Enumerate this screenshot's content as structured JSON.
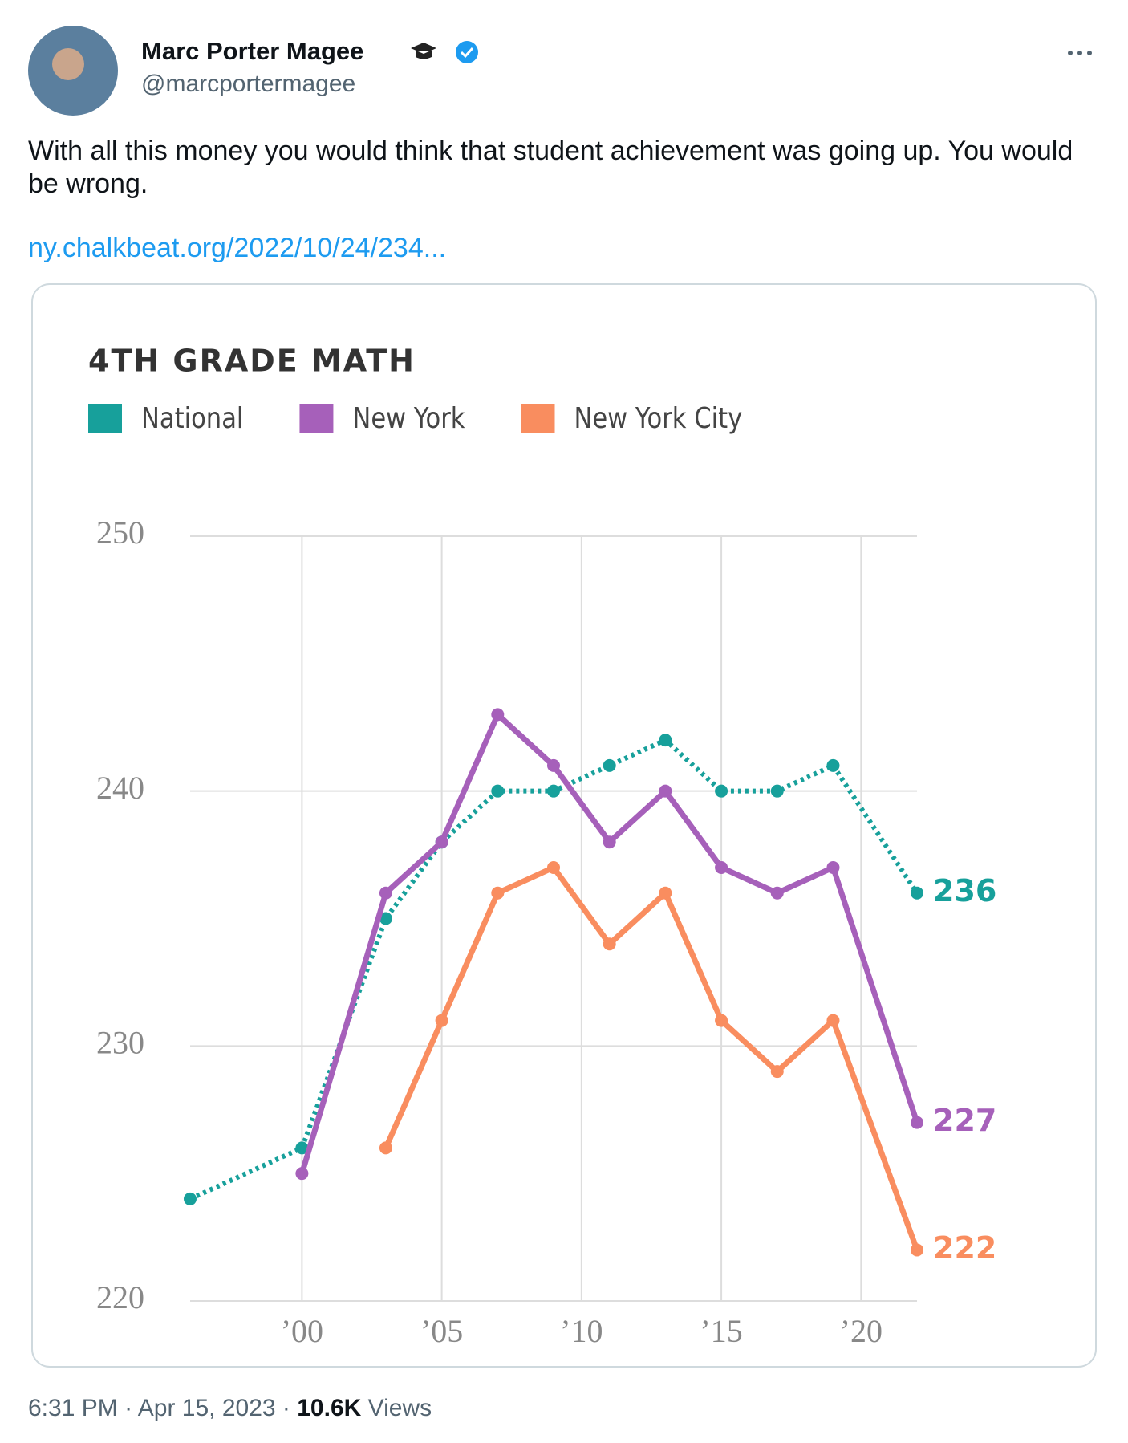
{
  "tweet": {
    "author_name": "Marc Porter Magee",
    "handle": "@marcportermagee",
    "text": "With all this money you would think that student achievement was going up. You would be wrong.",
    "link": "ny.chalkbeat.org/2022/10/24/234...",
    "time": "6:31 PM",
    "separator": "·",
    "date": "Apr 15, 2023",
    "views": "10.6K",
    "views_label": "Views"
  },
  "chart_data": {
    "type": "line",
    "title": "4TH GRADE MATH",
    "x": [
      1996,
      2000,
      2003,
      2005,
      2007,
      2009,
      2011,
      2013,
      2015,
      2017,
      2019,
      2022
    ],
    "series": [
      {
        "name": "National",
        "color": "#17a09b",
        "line_style": "dotted",
        "values": [
          224,
          226,
          235,
          238,
          240,
          240,
          241,
          242,
          240,
          240,
          241,
          236
        ]
      },
      {
        "name": "New York",
        "color": "#a660ba",
        "line_style": "solid",
        "values": [
          null,
          225,
          236,
          238,
          243,
          241,
          238,
          240,
          237,
          236,
          237,
          227
        ]
      },
      {
        "name": "New York City",
        "color": "#f98d5f",
        "line_style": "solid",
        "values": [
          null,
          null,
          226,
          231,
          236,
          237,
          234,
          236,
          231,
          229,
          231,
          222
        ]
      }
    ],
    "xlim": [
      1996,
      2022
    ],
    "xticks": [
      {
        "value": 2000,
        "label": "’00"
      },
      {
        "value": 2005,
        "label": "’05"
      },
      {
        "value": 2010,
        "label": "’10"
      },
      {
        "value": 2015,
        "label": "’15"
      },
      {
        "value": 2020,
        "label": "’20"
      }
    ],
    "ylim": [
      220,
      250
    ],
    "yticks": [
      220,
      230,
      240,
      250
    ],
    "grid": true
  }
}
